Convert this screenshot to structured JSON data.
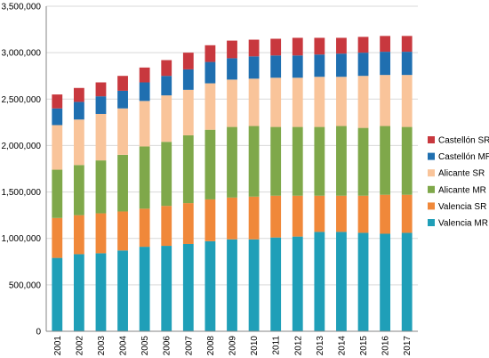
{
  "chart_data": {
    "type": "bar",
    "stacked": true,
    "title": "",
    "xlabel": "",
    "ylabel": "",
    "ylim": [
      0,
      3500000
    ],
    "y_ticks": [
      0,
      500000,
      1000000,
      1500000,
      2000000,
      2500000,
      3000000,
      3500000
    ],
    "y_tick_labels": [
      "0",
      "500,000",
      "1,000,000",
      "1,500,000",
      "2,000,000",
      "2,500,000",
      "3,000,000",
      "3,500,000"
    ],
    "grid": true,
    "legend_position": "right",
    "categories": [
      "2001",
      "2002",
      "2003",
      "2004",
      "2005",
      "2006",
      "2007",
      "2008",
      "2009",
      "2010",
      "2011",
      "2012",
      "2013",
      "2014",
      "2015",
      "2016",
      "2017"
    ],
    "series": [
      {
        "name": "Valencia MR",
        "color": "#1F9FB8",
        "values": [
          790000,
          830000,
          840000,
          870000,
          910000,
          920000,
          940000,
          970000,
          990000,
          990000,
          1010000,
          1020000,
          1070000,
          1070000,
          1060000,
          1050000,
          1060000
        ]
      },
      {
        "name": "Valencia SR",
        "color": "#F0883A",
        "values": [
          430000,
          420000,
          430000,
          420000,
          410000,
          430000,
          440000,
          450000,
          450000,
          460000,
          450000,
          440000,
          390000,
          390000,
          400000,
          420000,
          410000
        ]
      },
      {
        "name": "Alicante MR",
        "color": "#7FA84A",
        "values": [
          520000,
          540000,
          570000,
          610000,
          670000,
          690000,
          730000,
          750000,
          760000,
          760000,
          740000,
          740000,
          740000,
          750000,
          730000,
          740000,
          730000
        ]
      },
      {
        "name": "Alicante SR",
        "color": "#F9C49A",
        "values": [
          480000,
          490000,
          500000,
          500000,
          490000,
          500000,
          490000,
          500000,
          510000,
          510000,
          530000,
          530000,
          540000,
          530000,
          560000,
          550000,
          560000
        ]
      },
      {
        "name": "Castellón MR",
        "color": "#1F6FB0",
        "values": [
          180000,
          190000,
          190000,
          190000,
          200000,
          210000,
          220000,
          230000,
          230000,
          240000,
          240000,
          240000,
          240000,
          250000,
          250000,
          250000,
          250000
        ]
      },
      {
        "name": "Castellón SR",
        "color": "#C8383E",
        "values": [
          150000,
          150000,
          150000,
          160000,
          160000,
          170000,
          180000,
          180000,
          190000,
          180000,
          180000,
          190000,
          180000,
          170000,
          170000,
          170000,
          170000
        ]
      }
    ],
    "legend_order": [
      "Castellón SR",
      "Castellón MR",
      "Alicante SR",
      "Alicante MR",
      "Valencia SR",
      "Valencia MR"
    ]
  }
}
